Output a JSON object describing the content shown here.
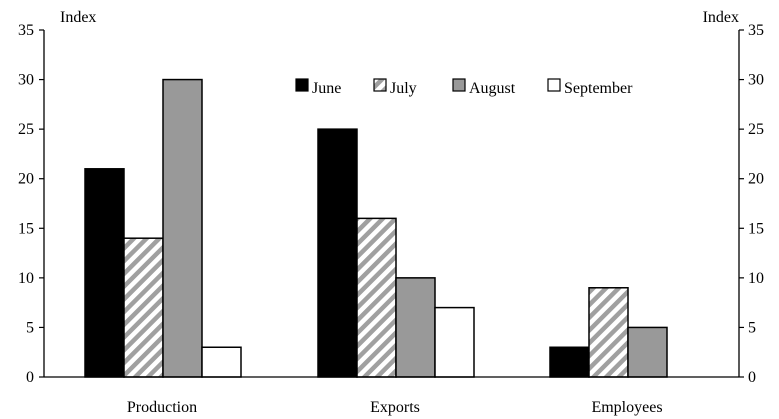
{
  "chart_data": {
    "type": "bar",
    "title": "",
    "ylabel_left": "Index",
    "ylabel_right": "Index",
    "ylim": [
      0,
      35
    ],
    "yticks": [
      0,
      5,
      10,
      15,
      20,
      25,
      30,
      35
    ],
    "categories": [
      "Production",
      "Exports",
      "Employees"
    ],
    "series": [
      {
        "name": "June",
        "values": [
          21,
          25,
          3
        ],
        "fill": "#000000",
        "pattern": "solid"
      },
      {
        "name": "July",
        "values": [
          14,
          16,
          9
        ],
        "fill": "#a0a0a0",
        "pattern": "diagonal-stripes"
      },
      {
        "name": "August",
        "values": [
          30,
          10,
          5
        ],
        "fill": "#999999",
        "pattern": "solid"
      },
      {
        "name": "September",
        "values": [
          3,
          7,
          0
        ],
        "fill": "#ffffff",
        "pattern": "solid"
      }
    ],
    "legend_position": "top-center",
    "grid": false
  }
}
